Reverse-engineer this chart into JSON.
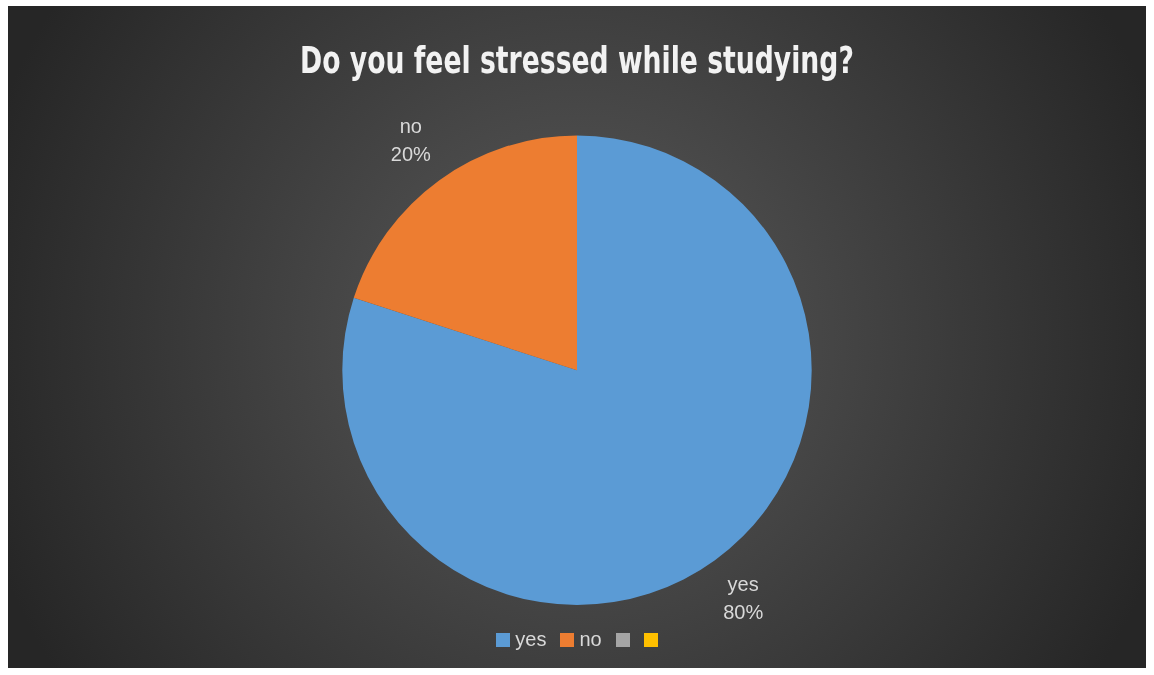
{
  "chart_data": {
    "type": "pie",
    "title": "Do you feel stressed while studying?",
    "categories": [
      "yes",
      "no",
      null,
      null
    ],
    "values": [
      80,
      20,
      0,
      0
    ],
    "colors": [
      "#5b9bd5",
      "#ed7d31",
      "#a5a5a5",
      "#ffc000"
    ],
    "value_labels": [
      "80%",
      "20%",
      null,
      null
    ],
    "legend": "bottom"
  }
}
